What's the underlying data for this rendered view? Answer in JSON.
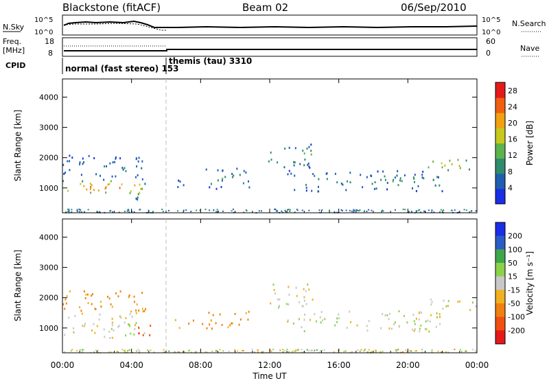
{
  "header": {
    "title": "Blackstone (fitACF)",
    "beam": "Beam 02",
    "date": "06/Sep/2010"
  },
  "nsky_panel": {
    "left_label": "N.Sky",
    "left_ticks": [
      "10^5",
      "10^0"
    ],
    "right_ticks": [
      "10^5",
      "10^0"
    ],
    "right_label": "N.Search"
  },
  "freq_panel": {
    "left_label": "Freq.",
    "left_unit": "[MHz]",
    "left_ticks": [
      "18",
      "8"
    ],
    "right_ticks": [
      "60",
      "0"
    ],
    "right_label": "Nave"
  },
  "cpid": {
    "label": "CPID",
    "modes": [
      {
        "text": "normal (fast stereo) 153",
        "start_hour": 0
      },
      {
        "text": "themis (tau) 3310",
        "start_hour": 6
      }
    ]
  },
  "time_axis": {
    "ticks": [
      "00:00",
      "04:00",
      "08:00",
      "12:00",
      "16:00",
      "20:00",
      "00:00"
    ],
    "label": "Time UT"
  },
  "range_axis": {
    "label": "Slant Range [km]",
    "ticks": [
      "1000",
      "2000",
      "3000",
      "4000"
    ],
    "min": 180,
    "max": 4600
  },
  "chart_data": [
    {
      "type": "heatmap",
      "parameter": "Power",
      "colorbar_label": "Power [dB]",
      "colorbar_ticks": [
        "4",
        "8",
        "12",
        "16",
        "20",
        "24",
        "28"
      ],
      "range": [
        0,
        30
      ],
      "colors": [
        "#1a2ee6",
        "#1f5fb0",
        "#2f8c6c",
        "#5eb34d",
        "#c8c81e",
        "#f0a010",
        "#f06010",
        "#e41a1a"
      ],
      "xlim_hours": [
        0,
        24
      ],
      "ylim_km": [
        180,
        4600
      ],
      "echo_regions": [
        {
          "t0": 0.0,
          "t1": 4.8,
          "r0": 800,
          "r1": 1300,
          "peak_db": 24
        },
        {
          "t0": 0.0,
          "t1": 4.8,
          "r0": 1300,
          "r1": 2100,
          "peak_db": 8
        },
        {
          "t0": 4.2,
          "t1": 5.1,
          "r0": 600,
          "r1": 1200,
          "peak_db": 14
        },
        {
          "t0": 6.5,
          "t1": 7.7,
          "r0": 1000,
          "r1": 1300,
          "peak_db": 8
        },
        {
          "t0": 8.0,
          "t1": 10.8,
          "r0": 1000,
          "r1": 1700,
          "peak_db": 10
        },
        {
          "t0": 11.7,
          "t1": 14.5,
          "r0": 1700,
          "r1": 2500,
          "peak_db": 12
        },
        {
          "t0": 13.0,
          "t1": 22.0,
          "r0": 900,
          "r1": 1600,
          "peak_db": 10
        },
        {
          "t0": 21.0,
          "t1": 24.0,
          "r0": 1600,
          "r1": 2000,
          "peak_db": 22
        }
      ]
    },
    {
      "type": "heatmap",
      "parameter": "Velocity",
      "colorbar_label": "Velocity [m s⁻¹]",
      "colorbar_ticks": [
        "200",
        "100",
        "50",
        "15",
        "-15",
        "-50",
        "-100",
        "-200"
      ],
      "range": [
        -250,
        250
      ],
      "colors": [
        "#1a2ee6",
        "#2a5cc8",
        "#3ea74a",
        "#8bd24a",
        "#c8c8c8",
        "#f0b020",
        "#f08010",
        "#f05010",
        "#e41a1a"
      ],
      "xlim_hours": [
        0,
        24
      ],
      "ylim_km": [
        180,
        4600
      ],
      "echo_regions": [
        {
          "t0": 0.0,
          "t1": 4.8,
          "r0": 700,
          "r1": 1500,
          "velocity": 0
        },
        {
          "t0": 0.0,
          "t1": 4.8,
          "r0": 1500,
          "r1": 2300,
          "velocity": -60
        },
        {
          "t0": 4.3,
          "t1": 5.1,
          "r0": 600,
          "r1": 1200,
          "velocity": -180
        },
        {
          "t0": 6.5,
          "t1": 7.7,
          "r0": 1000,
          "r1": 1300,
          "velocity": -70
        },
        {
          "t0": 8.0,
          "t1": 10.8,
          "r0": 1000,
          "r1": 1700,
          "velocity": -60
        },
        {
          "t0": 11.7,
          "t1": 14.5,
          "r0": 1700,
          "r1": 2500,
          "velocity": 0
        },
        {
          "t0": 13.0,
          "t1": 22.0,
          "r0": 900,
          "r1": 1600,
          "velocity": 0
        },
        {
          "t0": 21.0,
          "t1": 24.0,
          "r0": 1600,
          "r1": 2000,
          "velocity": 0
        }
      ]
    }
  ]
}
